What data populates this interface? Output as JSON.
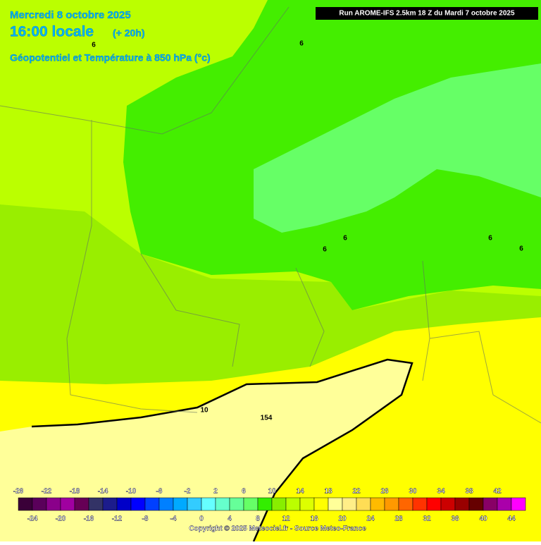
{
  "header": {
    "date": "Mercredi 8 octobre 2025",
    "time": "16:00 locale",
    "lead": "(+ 20h)",
    "subtitle": "Géopotentiel et Température à 850 hPa (°c)"
  },
  "run_info": "Run AROME-IFS 2.5km 18 Z du Mardi 7 octobre 2025",
  "contour_labels": [
    "6",
    "6",
    "6",
    "6",
    "6",
    "6",
    "10",
    "154"
  ],
  "legend": {
    "ticks": [
      -26,
      -24,
      -22,
      -20,
      -18,
      -16,
      -14,
      -12,
      -10,
      -8,
      -6,
      -4,
      -2,
      0,
      2,
      4,
      6,
      8,
      10,
      12,
      14,
      16,
      18,
      20,
      22,
      24,
      26,
      28,
      30,
      32,
      34,
      36,
      38,
      40,
      42,
      44
    ],
    "colors": [
      "#3a0038",
      "#5a005a",
      "#8a008a",
      "#a000a0",
      "#660055",
      "#333366",
      "#1c1c8c",
      "#0000c8",
      "#0000ff",
      "#0040ff",
      "#0080ff",
      "#00aaff",
      "#33ccff",
      "#66ffff",
      "#66ffcc",
      "#66ff99",
      "#66ff66",
      "#33ee00",
      "#88ee00",
      "#bbff00",
      "#ddff00",
      "#ffff00",
      "#ffff99",
      "#ffee88",
      "#ffdd55",
      "#ffbb00",
      "#ff9900",
      "#ff6600",
      "#ff3300",
      "#ff0000",
      "#cc0000",
      "#990000",
      "#660000",
      "#880066",
      "#aa00aa",
      "#ff00ff"
    ]
  },
  "copyright": "Copyright © 2025 Meteociel.fr - Source Meteo-France"
}
